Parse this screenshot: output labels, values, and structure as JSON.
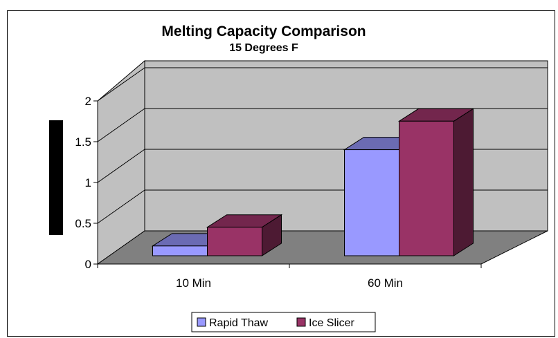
{
  "chart_data": {
    "type": "bar",
    "title": "Melting Capacity Comparison",
    "subtitle": "15 Degrees F",
    "xlabel": "",
    "ylabel": "",
    "categories": [
      "10 Min",
      "60 Min"
    ],
    "series": [
      {
        "name": "Rapid Thaw",
        "values": [
          0.12,
          1.3
        ],
        "color": "#9999ff"
      },
      {
        "name": "Ice Slicer",
        "values": [
          0.35,
          1.65
        ],
        "color": "#993366"
      }
    ],
    "ylim": [
      0,
      2
    ],
    "yticks": [
      "0",
      "0.5",
      "1",
      "1.5",
      "2"
    ],
    "grid": true,
    "legend_position": "bottom",
    "wall_color": "#c0c0c0",
    "floor_color": "#808080"
  }
}
